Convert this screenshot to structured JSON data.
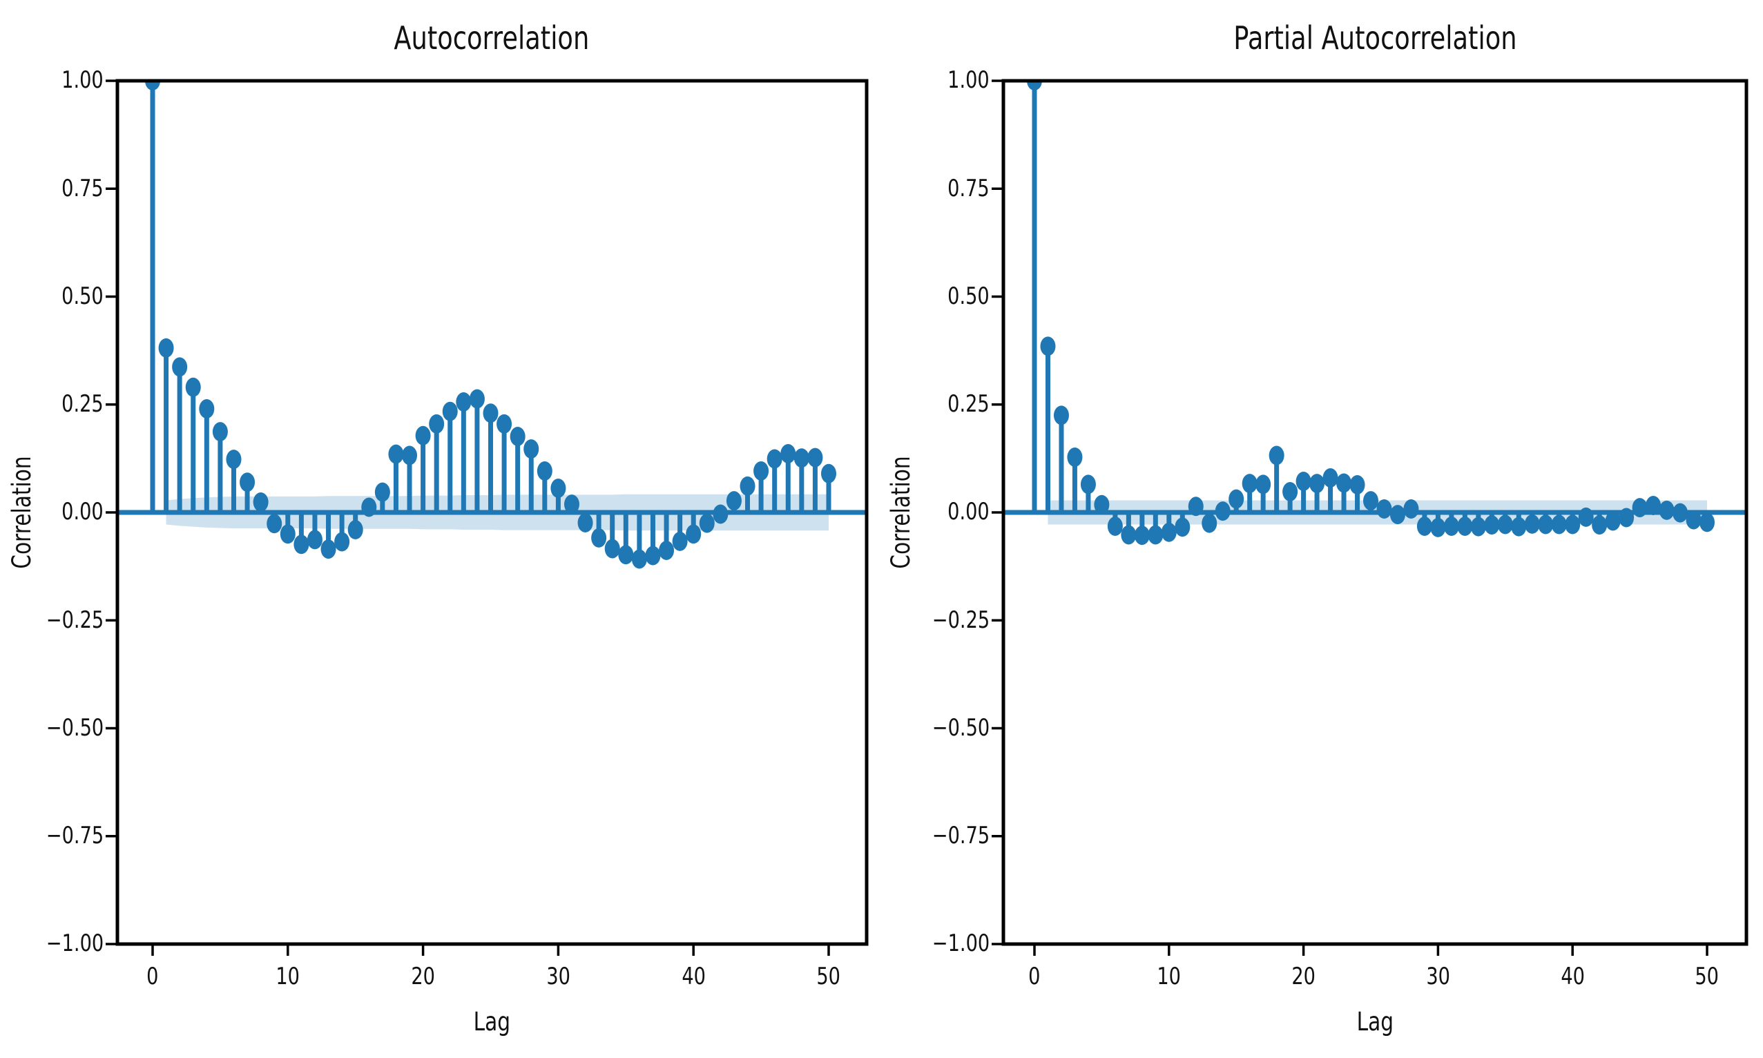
{
  "figure": {
    "background": "#ffffff"
  },
  "style": {
    "stem_color": "#1f77b4",
    "band_fill": "#1f77b4",
    "band_opacity": 0.22,
    "spine_color": "#000000",
    "tick_color": "#000000",
    "text_color": "#111111"
  },
  "chart_data": [
    {
      "type": "stem",
      "id": "acf",
      "title": "Autocorrelation",
      "xlabel": "Lag",
      "ylabel": "Correlation",
      "ylim": [
        -1.0,
        1.0
      ],
      "x_ticks": [
        0,
        10,
        20,
        30,
        40,
        50
      ],
      "x_tick_labels": [
        "0",
        "10",
        "20",
        "30",
        "40",
        "50"
      ],
      "y_ticks": [
        1.0,
        0.75,
        0.5,
        0.25,
        0.0,
        -0.25,
        -0.5,
        -0.75,
        -1.0
      ],
      "y_tick_labels": [
        "1.00",
        "0.75",
        "0.50",
        "0.25",
        "0.00",
        "−0.25",
        "−0.50",
        "−0.75",
        "−1.00"
      ],
      "lags": [
        0,
        1,
        2,
        3,
        4,
        5,
        6,
        7,
        8,
        9,
        10,
        11,
        12,
        13,
        14,
        15,
        16,
        17,
        18,
        19,
        20,
        21,
        22,
        23,
        24,
        25,
        26,
        27,
        28,
        29,
        30,
        31,
        32,
        33,
        34,
        35,
        36,
        37,
        38,
        39,
        40,
        41,
        42,
        43,
        44,
        45,
        46,
        47,
        48,
        49,
        50
      ],
      "values": [
        1.0,
        0.381,
        0.337,
        0.29,
        0.24,
        0.187,
        0.123,
        0.07,
        0.024,
        -0.026,
        -0.05,
        -0.074,
        -0.063,
        -0.085,
        -0.068,
        -0.04,
        0.012,
        0.047,
        0.135,
        0.132,
        0.178,
        0.205,
        0.234,
        0.256,
        0.263,
        0.23,
        0.205,
        0.176,
        0.147,
        0.096,
        0.056,
        0.019,
        -0.024,
        -0.059,
        -0.084,
        -0.098,
        -0.108,
        -0.1,
        -0.088,
        -0.067,
        -0.05,
        -0.025,
        -0.004,
        0.027,
        0.061,
        0.096,
        0.124,
        0.136,
        0.126,
        0.127,
        0.09
      ],
      "conf_band_halfwidth": [
        0.028,
        0.031,
        0.033,
        0.035,
        0.036,
        0.037,
        0.037,
        0.037,
        0.037,
        0.037,
        0.037,
        0.037,
        0.038,
        0.038,
        0.038,
        0.038,
        0.038,
        0.038,
        0.038,
        0.039,
        0.039,
        0.039,
        0.04,
        0.04,
        0.04,
        0.041,
        0.041,
        0.041,
        0.041,
        0.041,
        0.041,
        0.041,
        0.041,
        0.041,
        0.042,
        0.042,
        0.042,
        0.042,
        0.042,
        0.042,
        0.042,
        0.042,
        0.042,
        0.042,
        0.042,
        0.042,
        0.042,
        0.042,
        0.042,
        0.042
      ]
    },
    {
      "type": "stem",
      "id": "pacf",
      "title": "Partial Autocorrelation",
      "xlabel": "Lag",
      "ylabel": "Correlation",
      "ylim": [
        -1.0,
        1.0
      ],
      "x_ticks": [
        0,
        10,
        20,
        30,
        40,
        50
      ],
      "x_tick_labels": [
        "0",
        "10",
        "20",
        "30",
        "40",
        "50"
      ],
      "y_ticks": [
        1.0,
        0.75,
        0.5,
        0.25,
        0.0,
        -0.25,
        -0.5,
        -0.75,
        -1.0
      ],
      "y_tick_labels": [
        "1.00",
        "0.75",
        "0.50",
        "0.25",
        "0.00",
        "−0.25",
        "−0.50",
        "−0.75",
        "−1.00"
      ],
      "lags": [
        0,
        1,
        2,
        3,
        4,
        5,
        6,
        7,
        8,
        9,
        10,
        11,
        12,
        13,
        14,
        15,
        16,
        17,
        18,
        19,
        20,
        21,
        22,
        23,
        24,
        25,
        26,
        27,
        28,
        29,
        30,
        31,
        32,
        33,
        34,
        35,
        36,
        37,
        38,
        39,
        40,
        41,
        42,
        43,
        44,
        45,
        46,
        47,
        48,
        49,
        50
      ],
      "values": [
        1.0,
        0.385,
        0.225,
        0.128,
        0.065,
        0.018,
        -0.032,
        -0.052,
        -0.053,
        -0.052,
        -0.046,
        -0.034,
        0.014,
        -0.025,
        0.003,
        0.031,
        0.067,
        0.065,
        0.132,
        0.048,
        0.072,
        0.067,
        0.08,
        0.068,
        0.064,
        0.027,
        0.008,
        -0.005,
        0.008,
        -0.032,
        -0.035,
        -0.032,
        -0.032,
        -0.033,
        -0.029,
        -0.028,
        -0.033,
        -0.027,
        -0.028,
        -0.028,
        -0.028,
        -0.011,
        -0.029,
        -0.02,
        -0.012,
        0.011,
        0.016,
        0.005,
        -0.001,
        -0.017,
        -0.023
      ],
      "conf_band_halfwidth": 0.028
    }
  ]
}
